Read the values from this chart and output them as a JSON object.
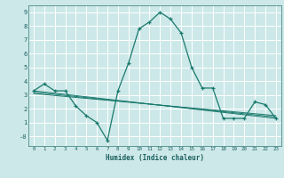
{
  "xlabel": "Humidex (Indice chaleur)",
  "ylabel": "",
  "bg_color": "#cde8e8",
  "grid_color": "#ffffff",
  "line_color": "#1a7a6e",
  "tick_color": "#1a5f5f",
  "xlim": [
    -0.5,
    23.5
  ],
  "ylim": [
    -0.7,
    9.5
  ],
  "xticks": [
    0,
    1,
    2,
    3,
    4,
    5,
    6,
    7,
    8,
    9,
    10,
    11,
    12,
    13,
    14,
    15,
    16,
    17,
    18,
    19,
    20,
    21,
    22,
    23
  ],
  "yticks": [
    0,
    1,
    2,
    3,
    4,
    5,
    6,
    7,
    8,
    9
  ],
  "ytick_labels": [
    "-0",
    "1",
    "2",
    "3",
    "4",
    "5",
    "6",
    "7",
    "8",
    "9"
  ],
  "series1_x": [
    0,
    1,
    2,
    3,
    4,
    5,
    6,
    7,
    8,
    9,
    10,
    11,
    12,
    13,
    14,
    15,
    16,
    17,
    18,
    19,
    20,
    21,
    22,
    23
  ],
  "series1_y": [
    3.3,
    3.8,
    3.3,
    3.3,
    2.2,
    1.5,
    1.0,
    -0.3,
    3.3,
    5.3,
    7.8,
    8.3,
    9.0,
    8.5,
    7.5,
    5.0,
    3.5,
    3.5,
    1.3,
    1.3,
    1.3,
    2.5,
    2.3,
    1.3
  ],
  "series2_x": [
    0,
    23
  ],
  "series2_y": [
    3.3,
    1.3
  ],
  "series3_x": [
    0,
    23
  ],
  "series3_y": [
    3.1,
    1.5
  ],
  "series4_x": [
    0,
    23
  ],
  "series4_y": [
    3.2,
    1.4
  ]
}
